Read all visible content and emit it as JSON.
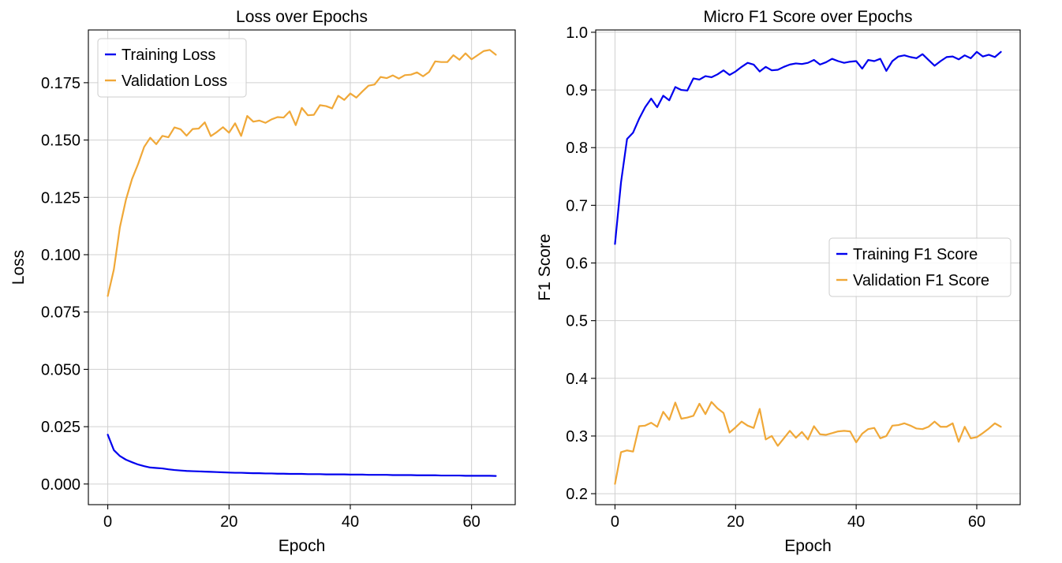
{
  "chart_data": [
    {
      "type": "line",
      "title": "Loss over Epochs",
      "xlabel": "Epoch",
      "ylabel": "Loss",
      "xlim": [
        -3.2,
        67.2
      ],
      "ylim": [
        -0.009,
        0.198
      ],
      "xticks": [
        0,
        20,
        40,
        60
      ],
      "yticks": [
        0.0,
        0.025,
        0.05,
        0.075,
        0.1,
        0.125,
        0.15,
        0.175
      ],
      "ytick_decimals": 3,
      "grid": true,
      "legend_position": "upper-left",
      "x": [
        0,
        1,
        2,
        3,
        4,
        5,
        6,
        7,
        8,
        9,
        10,
        11,
        12,
        13,
        14,
        15,
        16,
        17,
        18,
        19,
        20,
        21,
        22,
        23,
        24,
        25,
        26,
        27,
        28,
        29,
        30,
        31,
        32,
        33,
        34,
        35,
        36,
        37,
        38,
        39,
        40,
        41,
        42,
        43,
        44,
        45,
        46,
        47,
        48,
        49,
        50,
        51,
        52,
        53,
        54,
        55,
        56,
        57,
        58,
        59,
        60,
        61,
        62,
        63,
        64
      ],
      "series": [
        {
          "name": "Training Loss",
          "color": "#0000ee",
          "values": [
            0.0215,
            0.0148,
            0.0122,
            0.0106,
            0.0095,
            0.0085,
            0.0078,
            0.0072,
            0.007,
            0.0068,
            0.0064,
            0.0061,
            0.0059,
            0.0057,
            0.0056,
            0.0055,
            0.0054,
            0.0053,
            0.0052,
            0.0051,
            0.005,
            0.0049,
            0.0049,
            0.0048,
            0.0047,
            0.0047,
            0.0046,
            0.0046,
            0.0045,
            0.0045,
            0.0044,
            0.0044,
            0.0044,
            0.0043,
            0.0043,
            0.0043,
            0.0042,
            0.0042,
            0.0042,
            0.0042,
            0.0041,
            0.0041,
            0.0041,
            0.004,
            0.004,
            0.004,
            0.004,
            0.0039,
            0.0039,
            0.0039,
            0.0039,
            0.0038,
            0.0038,
            0.0038,
            0.0038,
            0.0037,
            0.0037,
            0.0037,
            0.0037,
            0.0036,
            0.0036,
            0.0036,
            0.0036,
            0.0036,
            0.0035
          ]
        },
        {
          "name": "Validation Loss",
          "color": "#f0a838",
          "values": [
            0.082,
            0.0935,
            0.112,
            0.124,
            0.133,
            0.1395,
            0.147,
            0.151,
            0.1482,
            0.1518,
            0.1512,
            0.1555,
            0.1547,
            0.1519,
            0.1548,
            0.155,
            0.1577,
            0.1517,
            0.1535,
            0.1556,
            0.1532,
            0.1573,
            0.1518,
            0.1605,
            0.158,
            0.1585,
            0.1575,
            0.159,
            0.16,
            0.1598,
            0.1625,
            0.1565,
            0.164,
            0.1608,
            0.161,
            0.1652,
            0.1648,
            0.1638,
            0.1693,
            0.1675,
            0.1703,
            0.1685,
            0.1712,
            0.1737,
            0.1742,
            0.1775,
            0.177,
            0.1782,
            0.1768,
            0.1783,
            0.1785,
            0.1795,
            0.1778,
            0.1797,
            0.1843,
            0.184,
            0.184,
            0.187,
            0.185,
            0.1878,
            0.1852,
            0.187,
            0.1888,
            0.1893,
            0.1872
          ]
        }
      ]
    },
    {
      "type": "line",
      "title": "Micro F1 Score over Epochs",
      "xlabel": "Epoch",
      "ylabel": "F1 Score",
      "xlim": [
        -3.2,
        67.2
      ],
      "ylim": [
        0.181,
        1.004
      ],
      "xticks": [
        0,
        20,
        40,
        60
      ],
      "yticks": [
        0.2,
        0.3,
        0.4,
        0.5,
        0.6,
        0.7,
        0.8,
        0.9,
        1.0
      ],
      "ytick_decimals": 1,
      "grid": true,
      "legend_position": "center-right",
      "x": [
        0,
        1,
        2,
        3,
        4,
        5,
        6,
        7,
        8,
        9,
        10,
        11,
        12,
        13,
        14,
        15,
        16,
        17,
        18,
        19,
        20,
        21,
        22,
        23,
        24,
        25,
        26,
        27,
        28,
        29,
        30,
        31,
        32,
        33,
        34,
        35,
        36,
        37,
        38,
        39,
        40,
        41,
        42,
        43,
        44,
        45,
        46,
        47,
        48,
        49,
        50,
        51,
        52,
        53,
        54,
        55,
        56,
        57,
        58,
        59,
        60,
        61,
        62,
        63,
        64
      ],
      "series": [
        {
          "name": "Training F1 Score",
          "color": "#0000ee",
          "values": [
            0.633,
            0.74,
            0.815,
            0.826,
            0.85,
            0.87,
            0.885,
            0.87,
            0.89,
            0.882,
            0.905,
            0.9,
            0.899,
            0.92,
            0.918,
            0.924,
            0.922,
            0.927,
            0.934,
            0.926,
            0.932,
            0.94,
            0.947,
            0.944,
            0.932,
            0.94,
            0.934,
            0.935,
            0.94,
            0.944,
            0.946,
            0.945,
            0.947,
            0.952,
            0.944,
            0.948,
            0.954,
            0.95,
            0.947,
            0.949,
            0.95,
            0.937,
            0.952,
            0.95,
            0.954,
            0.933,
            0.95,
            0.958,
            0.96,
            0.957,
            0.955,
            0.962,
            0.952,
            0.942,
            0.95,
            0.957,
            0.958,
            0.953,
            0.96,
            0.955,
            0.966,
            0.958,
            0.961,
            0.957,
            0.966
          ]
        },
        {
          "name": "Validation F1 Score",
          "color": "#f0a838",
          "values": [
            0.217,
            0.272,
            0.275,
            0.273,
            0.317,
            0.318,
            0.323,
            0.316,
            0.342,
            0.328,
            0.358,
            0.33,
            0.332,
            0.335,
            0.356,
            0.338,
            0.359,
            0.348,
            0.34,
            0.306,
            0.315,
            0.325,
            0.318,
            0.314,
            0.347,
            0.294,
            0.3,
            0.283,
            0.296,
            0.309,
            0.297,
            0.307,
            0.294,
            0.317,
            0.303,
            0.302,
            0.305,
            0.308,
            0.309,
            0.308,
            0.289,
            0.304,
            0.312,
            0.314,
            0.296,
            0.3,
            0.318,
            0.319,
            0.322,
            0.318,
            0.313,
            0.312,
            0.316,
            0.325,
            0.316,
            0.316,
            0.322,
            0.29,
            0.316,
            0.296,
            0.298,
            0.305,
            0.313,
            0.322,
            0.316
          ]
        }
      ]
    }
  ]
}
